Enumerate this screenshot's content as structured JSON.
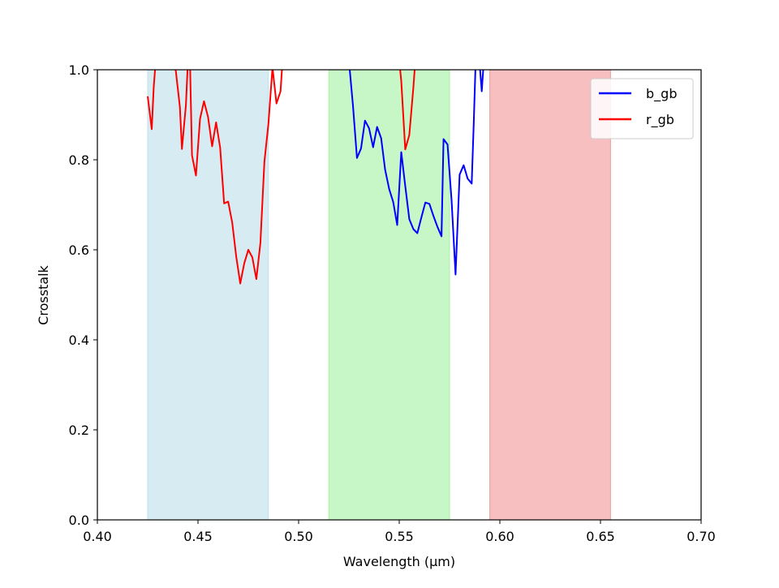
{
  "chart_data": {
    "type": "line",
    "title": "",
    "xlabel": "Wavelength (µm)",
    "ylabel": "Crosstalk",
    "xlim": [
      0.4,
      0.7
    ],
    "ylim": [
      0.0,
      1.0
    ],
    "xticks": [
      "0.40",
      "0.45",
      "0.50",
      "0.55",
      "0.60",
      "0.65",
      "0.70"
    ],
    "yticks": [
      "0.0",
      "0.2",
      "0.4",
      "0.6",
      "0.8",
      "1.0"
    ],
    "grid": false,
    "legend_position": "top-right",
    "bands": [
      {
        "x0": 0.425,
        "x1": 0.485,
        "color": "#add8e6"
      },
      {
        "x0": 0.515,
        "x1": 0.575,
        "color": "#90ee90"
      },
      {
        "x0": 0.595,
        "x1": 0.655,
        "color": "#f08080"
      }
    ],
    "series": [
      {
        "name": "b_gb",
        "color": "#0000ff",
        "points": [
          [
            0.525,
            1.02
          ],
          [
            0.527,
            0.92
          ],
          [
            0.529,
            0.804
          ],
          [
            0.531,
            0.825
          ],
          [
            0.533,
            0.887
          ],
          [
            0.535,
            0.87
          ],
          [
            0.537,
            0.828
          ],
          [
            0.539,
            0.873
          ],
          [
            0.541,
            0.848
          ],
          [
            0.543,
            0.778
          ],
          [
            0.545,
            0.735
          ],
          [
            0.547,
            0.706
          ],
          [
            0.549,
            0.655
          ],
          [
            0.551,
            0.817
          ],
          [
            0.553,
            0.742
          ],
          [
            0.555,
            0.668
          ],
          [
            0.557,
            0.646
          ],
          [
            0.559,
            0.637
          ],
          [
            0.561,
            0.672
          ],
          [
            0.563,
            0.705
          ],
          [
            0.565,
            0.702
          ],
          [
            0.567,
            0.675
          ],
          [
            0.569,
            0.651
          ],
          [
            0.571,
            0.63
          ],
          [
            0.572,
            0.846
          ],
          [
            0.574,
            0.834
          ],
          [
            0.576,
            0.71
          ],
          [
            0.578,
            0.545
          ],
          [
            0.58,
            0.767
          ],
          [
            0.582,
            0.788
          ],
          [
            0.584,
            0.758
          ],
          [
            0.586,
            0.747
          ],
          [
            0.587,
            0.88
          ],
          [
            0.588,
            1.02
          ],
          [
            0.59,
            1.01
          ],
          [
            0.591,
            0.952
          ],
          [
            0.592,
            1.02
          ]
        ]
      },
      {
        "name": "r_gb",
        "color": "#ff0000",
        "segments": [
          [
            [
              0.425,
              0.941
            ],
            [
              0.427,
              0.868
            ],
            [
              0.428,
              0.96
            ],
            [
              0.429,
              1.02
            ]
          ],
          [
            [
              0.438,
              1.02
            ],
            [
              0.439,
              0.997
            ],
            [
              0.441,
              0.917
            ],
            [
              0.442,
              0.824
            ],
            [
              0.444,
              0.921
            ],
            [
              0.445,
              1.02
            ]
          ],
          [
            [
              0.446,
              1.02
            ],
            [
              0.447,
              0.81
            ],
            [
              0.449,
              0.765
            ],
            [
              0.451,
              0.891
            ],
            [
              0.453,
              0.93
            ],
            [
              0.455,
              0.895
            ],
            [
              0.457,
              0.83
            ],
            [
              0.459,
              0.883
            ],
            [
              0.461,
              0.827
            ],
            [
              0.463,
              0.703
            ],
            [
              0.465,
              0.707
            ],
            [
              0.467,
              0.66
            ],
            [
              0.469,
              0.585
            ],
            [
              0.471,
              0.525
            ],
            [
              0.473,
              0.57
            ],
            [
              0.475,
              0.6
            ],
            [
              0.477,
              0.583
            ],
            [
              0.479,
              0.535
            ],
            [
              0.481,
              0.615
            ],
            [
              0.483,
              0.795
            ],
            [
              0.485,
              0.88
            ],
            [
              0.487,
              1.005
            ],
            [
              0.489,
              0.925
            ],
            [
              0.491,
              0.952
            ],
            [
              0.492,
              1.02
            ]
          ],
          [
            [
              0.55,
              1.02
            ],
            [
              0.551,
              0.975
            ],
            [
              0.553,
              0.823
            ],
            [
              0.555,
              0.855
            ],
            [
              0.557,
              0.96
            ],
            [
              0.558,
              1.02
            ]
          ]
        ]
      }
    ]
  }
}
